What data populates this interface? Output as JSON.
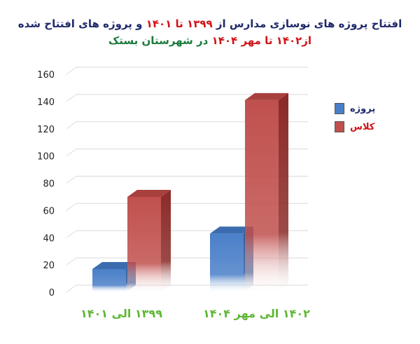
{
  "title": {
    "line1_part1": "افتتاح پروژه های نوسازی مدارس از",
    "line1_part2": "۱۳۹۹ تا ۱۴۰۱",
    "line1_part3": "و پروژه های افتتاح شده",
    "line2_part1": "از۱۴۰۲ تا مهر ۱۴۰۴",
    "line2_part2": "در شهرستان بستک"
  },
  "colors": {
    "series_project": "#4a7fc8",
    "series_class": "#c0504d",
    "category_label": "#5db832",
    "title_blue": "#1f2a6b",
    "title_red": "#d01418",
    "title_green": "#1a7a3a"
  },
  "chart_data": {
    "type": "bar",
    "style": "3d-column",
    "categories": [
      "۱۳۹۹ الی ۱۴۰۱",
      "۱۴۰۲ الی مهر ۱۴۰۴"
    ],
    "series": [
      {
        "name": "پروژه",
        "values": [
          17,
          43
        ]
      },
      {
        "name": "کلاس",
        "values": [
          70,
          141
        ]
      }
    ],
    "ylim": [
      0,
      160
    ],
    "yticks": [
      0,
      20,
      40,
      60,
      80,
      100,
      120,
      140,
      160
    ],
    "grid": true,
    "legend": "right"
  }
}
